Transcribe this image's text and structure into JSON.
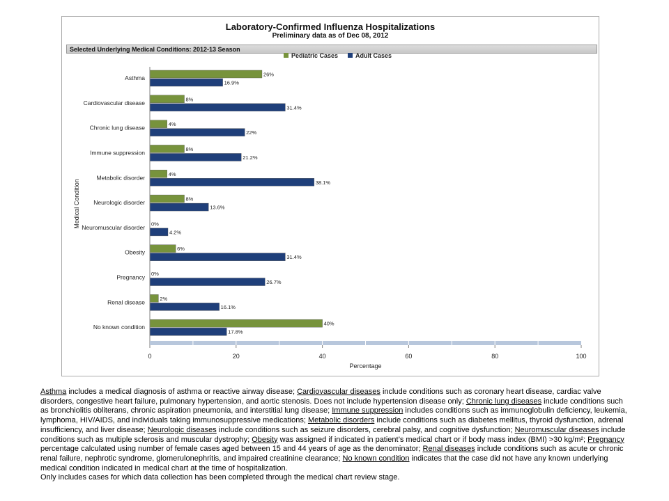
{
  "chart_data": {
    "type": "bar",
    "orientation": "horizontal",
    "title": "Laboratory-Confirmed Influenza Hospitalizations",
    "subtitle": "Preliminary data as of Dec 08, 2012",
    "section_label": "Selected Underlying Medical Conditions: 2012-13 Season",
    "xlabel": "Percentage",
    "ylabel": "Medical Condition",
    "xlim": [
      0,
      100
    ],
    "x_ticks": [
      0,
      20,
      40,
      60,
      80,
      100
    ],
    "legend_position": "top-center",
    "categories": [
      "Asthma",
      "Cardiovascular disease",
      "Chronic lung disease",
      "Immune suppression",
      "Metabolic disorder",
      "Neurologic disorder",
      "Neuromuscular disorder",
      "Obesity",
      "Pregnancy",
      "Renal disease",
      "No known condition"
    ],
    "series": [
      {
        "name": "Pediatric Cases",
        "color": "#77933c",
        "values": [
          26,
          8,
          4,
          8,
          4,
          8,
          0,
          6,
          0,
          2,
          40
        ],
        "labels": [
          "26%",
          "8%",
          "4%",
          "8%",
          "4%",
          "8%",
          "0%",
          "6%",
          "0%",
          "2%",
          "40%"
        ]
      },
      {
        "name": "Adult Cases",
        "color": "#1f3f7a",
        "values": [
          16.9,
          31.4,
          22,
          21.2,
          38.1,
          13.6,
          4.2,
          31.4,
          26.7,
          16.1,
          17.8
        ],
        "labels": [
          "16.9%",
          "31.4%",
          "22%",
          "21.2%",
          "38.1%",
          "13.6%",
          "4.2%",
          "31.4%",
          "26.7%",
          "16.1%",
          "17.8%"
        ]
      }
    ]
  },
  "footnotes": {
    "asthma_term": "Asthma",
    "asthma_text": " includes a medical diagnosis of asthma or reactive airway disease; ",
    "cardio_term": "Cardiovascular diseases",
    "cardio_text": " include conditions such as coronary heart disease, cardiac valve disorders, congestive heart failure, pulmonary hypertension, and aortic stenosis.  Does not include hypertension disease only;  ",
    "lung_term": "Chronic lung diseases",
    "lung_text": " include conditions such as bronchiolitis obliterans, chronic aspiration pneumonia, and interstitial lung disease;  ",
    "immune_term": "Immune suppression",
    "immune_text": " includes conditions such as immunoglobulin deficiency, leukemia, lymphoma, HIV/AIDS, and individuals taking immunosuppressive medications;  ",
    "metabolic_term": "Metabolic disorders",
    "metabolic_text": " include conditions such as diabetes mellitus, thyroid dysfunction, adrenal insufficiency, and liver disease;  ",
    "neuro_term": "Neurologic diseases",
    "neuro_text": " include conditions such as seizure disorders, cerebral palsy, and cognitive dysfunction;  ",
    "neuromuscular_term": "Neuromuscular diseases",
    "neuromuscular_text": " include conditions such as multiple sclerosis and muscular dystrophy;  ",
    "obesity_term": "Obesity",
    "obesity_text": " was assigned if indicated in patient’s medical chart or if body mass index (BMI) >30 kg/m²;  ",
    "pregnancy_term": "Pregnancy",
    "pregnancy_text": " percentage calculated using number of female cases aged between 15 and 44 years of age as the denominator;  ",
    "renal_term": "Renal diseases",
    "renal_text": " include conditions such as acute or chronic renal failure, nephrotic syndrome, glomerulonephritis, and impaired creatinine clearance;  ",
    "noknown_term": "No known condition",
    "noknown_text": " indicates that the case did not have any known underlying medical condition indicated in medical chart at the time of hospitalization.",
    "last_line": "Only includes cases for which data collection has been completed through the medical chart review stage."
  }
}
